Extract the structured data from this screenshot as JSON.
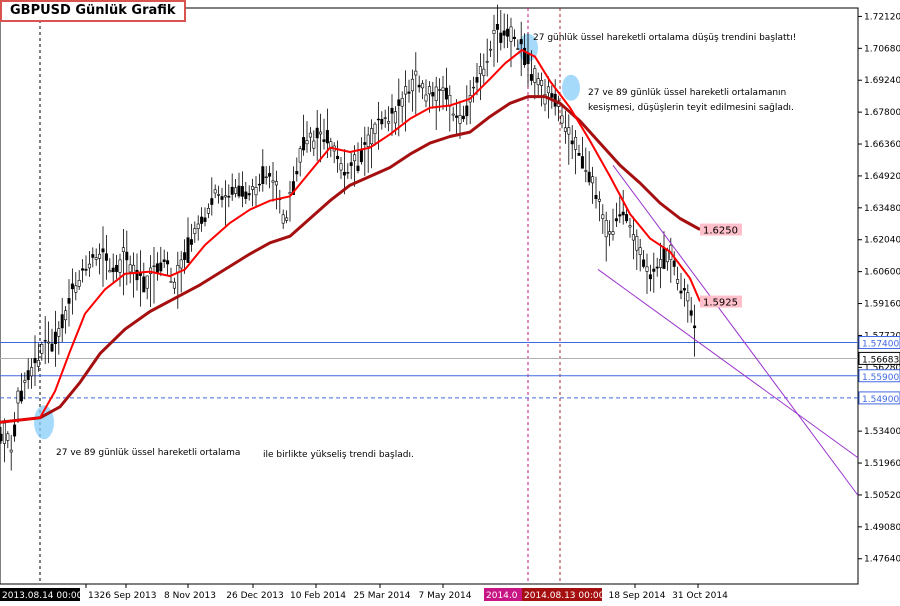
{
  "chart_data": {
    "type": "candlestick",
    "title": "GBPUSD Günlük Grafik",
    "y_axis": {
      "range": [
        1.465,
        1.725
      ],
      "ticks": [
        "1.72120",
        "1.70680",
        "1.69240",
        "1.67800",
        "1.66360",
        "1.64920",
        "1.63480",
        "1.62040",
        "1.60600",
        "1.59160",
        "1.57720",
        "1.56280",
        "1.53400",
        "1.51960",
        "1.50520",
        "1.49080",
        "1.47640"
      ]
    },
    "x_axis": {
      "tick_labels": [
        "13",
        "26 Sep 2013",
        "8 Nov 2013",
        "26 Dec 2013",
        "10 Feb 2014",
        "25 Mar 2014",
        "7 May 2014",
        "18 Sep 2014",
        "31 Oct 2014"
      ],
      "cursor_labels": [
        "2013.08.14 00:00",
        "2014.0",
        "2014.08.13 00:00"
      ]
    },
    "price_path": [
      [
        0,
        1.53
      ],
      [
        6,
        1.535
      ],
      [
        12,
        1.523
      ],
      [
        18,
        1.548
      ],
      [
        25,
        1.555
      ],
      [
        35,
        1.565
      ],
      [
        45,
        1.575
      ],
      [
        55,
        1.573
      ],
      [
        65,
        1.585
      ],
      [
        75,
        1.6
      ],
      [
        85,
        1.608
      ],
      [
        95,
        1.613
      ],
      [
        105,
        1.612
      ],
      [
        115,
        1.606
      ],
      [
        125,
        1.612
      ],
      [
        135,
        1.605
      ],
      [
        145,
        1.6
      ],
      [
        155,
        1.605
      ],
      [
        165,
        1.612
      ],
      [
        175,
        1.6
      ],
      [
        185,
        1.612
      ],
      [
        195,
        1.625
      ],
      [
        205,
        1.63
      ],
      [
        215,
        1.643
      ],
      [
        225,
        1.637
      ],
      [
        235,
        1.645
      ],
      [
        245,
        1.64
      ],
      [
        255,
        1.643
      ],
      [
        265,
        1.65
      ],
      [
        275,
        1.646
      ],
      [
        285,
        1.628
      ],
      [
        295,
        1.648
      ],
      [
        305,
        1.668
      ],
      [
        315,
        1.665
      ],
      [
        325,
        1.668
      ],
      [
        335,
        1.66
      ],
      [
        345,
        1.65
      ],
      [
        355,
        1.655
      ],
      [
        365,
        1.66
      ],
      [
        375,
        1.67
      ],
      [
        385,
        1.675
      ],
      [
        395,
        1.676
      ],
      [
        405,
        1.684
      ],
      [
        415,
        1.692
      ],
      [
        425,
        1.688
      ],
      [
        435,
        1.684
      ],
      [
        445,
        1.688
      ],
      [
        455,
        1.675
      ],
      [
        465,
        1.677
      ],
      [
        475,
        1.69
      ],
      [
        485,
        1.7
      ],
      [
        495,
        1.712
      ],
      [
        505,
        1.714
      ],
      [
        515,
        1.711
      ],
      [
        522,
        1.705
      ],
      [
        530,
        1.698
      ],
      [
        540,
        1.69
      ],
      [
        550,
        1.685
      ],
      [
        560,
        1.68
      ],
      [
        570,
        1.665
      ],
      [
        580,
        1.66
      ],
      [
        590,
        1.65
      ],
      [
        600,
        1.635
      ],
      [
        608,
        1.622
      ],
      [
        615,
        1.63
      ],
      [
        622,
        1.636
      ],
      [
        630,
        1.626
      ],
      [
        640,
        1.615
      ],
      [
        650,
        1.602
      ],
      [
        660,
        1.61
      ],
      [
        670,
        1.615
      ],
      [
        680,
        1.6
      ],
      [
        688,
        1.593
      ],
      [
        693,
        1.585
      ],
      [
        697,
        1.57
      ]
    ],
    "ema_27": [
      [
        0,
        1.538
      ],
      [
        40,
        1.54
      ],
      [
        55,
        1.552
      ],
      [
        70,
        1.57
      ],
      [
        85,
        1.587
      ],
      [
        105,
        1.598
      ],
      [
        125,
        1.605
      ],
      [
        150,
        1.606
      ],
      [
        170,
        1.604
      ],
      [
        185,
        1.607
      ],
      [
        205,
        1.618
      ],
      [
        230,
        1.628
      ],
      [
        250,
        1.634
      ],
      [
        270,
        1.638
      ],
      [
        290,
        1.64
      ],
      [
        310,
        1.651
      ],
      [
        330,
        1.662
      ],
      [
        350,
        1.66
      ],
      [
        370,
        1.662
      ],
      [
        390,
        1.668
      ],
      [
        410,
        1.675
      ],
      [
        430,
        1.68
      ],
      [
        450,
        1.681
      ],
      [
        470,
        1.684
      ],
      [
        490,
        1.693
      ],
      [
        505,
        1.7
      ],
      [
        522,
        1.706
      ],
      [
        535,
        1.703
      ],
      [
        550,
        1.692
      ],
      [
        570,
        1.68
      ],
      [
        590,
        1.665
      ],
      [
        610,
        1.649
      ],
      [
        630,
        1.632
      ],
      [
        650,
        1.621
      ],
      [
        670,
        1.615
      ],
      [
        690,
        1.603
      ],
      [
        700,
        1.5925
      ]
    ],
    "ema_89": [
      [
        0,
        1.538
      ],
      [
        40,
        1.54
      ],
      [
        60,
        1.545
      ],
      [
        80,
        1.556
      ],
      [
        100,
        1.569
      ],
      [
        125,
        1.58
      ],
      [
        150,
        1.588
      ],
      [
        175,
        1.594
      ],
      [
        200,
        1.6
      ],
      [
        225,
        1.607
      ],
      [
        250,
        1.614
      ],
      [
        270,
        1.619
      ],
      [
        290,
        1.622
      ],
      [
        310,
        1.63
      ],
      [
        330,
        1.638
      ],
      [
        350,
        1.645
      ],
      [
        370,
        1.649
      ],
      [
        390,
        1.653
      ],
      [
        410,
        1.659
      ],
      [
        430,
        1.664
      ],
      [
        450,
        1.667
      ],
      [
        470,
        1.669
      ],
      [
        490,
        1.676
      ],
      [
        510,
        1.682
      ],
      [
        528,
        1.685
      ],
      [
        545,
        1.685
      ],
      [
        560,
        1.682
      ],
      [
        580,
        1.674
      ],
      [
        600,
        1.664
      ],
      [
        620,
        1.654
      ],
      [
        640,
        1.646
      ],
      [
        660,
        1.637
      ],
      [
        680,
        1.63
      ],
      [
        700,
        1.625
      ]
    ],
    "channel_lines": [
      {
        "from": [
          613,
          1.654
        ],
        "to": [
          858,
          1.505
        ]
      },
      {
        "from": [
          598,
          1.607
        ],
        "to": [
          858,
          1.522
        ]
      }
    ],
    "horizontal_lines": [
      {
        "value": 1.574,
        "label": "1.57400",
        "color": "#4169e1",
        "style": "solid"
      },
      {
        "value": 1.5668,
        "label": "",
        "color": "#b0b0b0",
        "style": "solid"
      },
      {
        "value": 1.559,
        "label": "1.55900",
        "color": "#4169e1",
        "style": "solid"
      },
      {
        "value": 1.549,
        "label": "1.54900",
        "color": "#4169e1",
        "style": "dashed"
      }
    ],
    "current_price_label": "1.56683",
    "ema_value_labels": [
      "1.6250",
      "1.5925"
    ],
    "annotations": [
      "27 günlük üssel hareketli ortalama düşüş trendini başlattı!",
      "27 ve 89 günlük üssel hareketli ortalamanın",
      "kesişmesi, düşüşlerin teyit edilmesini sağladı.",
      "27 ve 89 günlük üssel hareketli ortalama",
      "ile birlikte yükseliş trendi başladı."
    ],
    "colors": {
      "candles": "#000000",
      "ema_27": "#ff0000",
      "ema_89": "#a50f0f",
      "channel": "#9932cc",
      "highlight": "#87cefa",
      "label_bg": "#ffc0cb",
      "cursor_line": "#c71585"
    }
  }
}
